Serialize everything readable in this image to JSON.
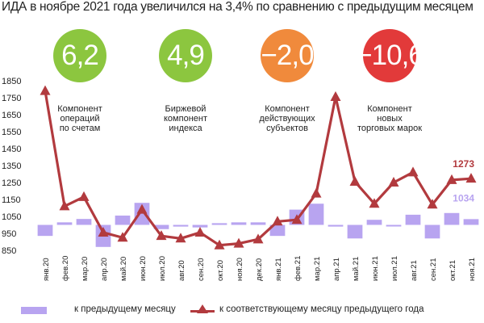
{
  "title": "ИДА в ноябре 2021 года увеличился на 3,4% по сравнению с предыдущим месяцем",
  "indicators": [
    {
      "value": "6,2",
      "label_lines": [
        "Компонент",
        "операций",
        "по счетам"
      ],
      "color": "#8cc63f"
    },
    {
      "value": "4,9",
      "label_lines": [
        "Биржевой",
        "компонент",
        "индекса"
      ],
      "color": "#8cc63f"
    },
    {
      "value": "−2,0",
      "label_lines": [
        "Компонент",
        "действующих",
        "субъектов"
      ],
      "color": "#f08a3c"
    },
    {
      "value": "−10,6",
      "label_lines": [
        "Компонент",
        "новых",
        "торговых марок"
      ],
      "color": "#e23a3a"
    }
  ],
  "legend": {
    "bar_label": "к предыдущему месяцу",
    "line_label": "к соответствующему месяцу предыдущего года"
  },
  "colors": {
    "bar": "#b8a4f0",
    "line": "#b23a3e"
  },
  "chart_data": {
    "type": "bar+line",
    "categories": [
      "янв.20",
      "фев.20",
      "мар.20",
      "апр.20",
      "май.20",
      "июн.20",
      "июл.20",
      "авг.20",
      "сен.20",
      "окт.20",
      "ноя.20",
      "дек.20",
      "янв.21",
      "фев.21",
      "мар.21",
      "апр.21",
      "май.21",
      "июн.21",
      "июл.21",
      "авг.21",
      "сен.21",
      "окт.21",
      "ноя.21"
    ],
    "ylim": [
      850,
      1850
    ],
    "yticks": [
      850,
      950,
      1050,
      1150,
      1250,
      1350,
      1450,
      1550,
      1650,
      1750,
      1850
    ],
    "baseline": 1000,
    "series": [
      {
        "name": "к предыдущему месяцу",
        "type": "bar",
        "values": [
          935,
          1015,
          1035,
          870,
          1055,
          1130,
          975,
          990,
          985,
          1010,
          1015,
          1015,
          935,
          1090,
          1125,
          990,
          920,
          1030,
          995,
          1060,
          920,
          1070,
          1034
        ]
      },
      {
        "name": "к соответствующему месяцу предыдущего года",
        "type": "line",
        "values": [
          1790,
          1110,
          1165,
          955,
          925,
          1090,
          935,
          920,
          955,
          880,
          890,
          915,
          1020,
          1030,
          1185,
          1755,
          1255,
          1125,
          1250,
          1310,
          1120,
          1265,
          1273
        ]
      }
    ],
    "data_labels": [
      {
        "series": 1,
        "index": 22,
        "text": "1273"
      },
      {
        "series": 0,
        "index": 22,
        "text": "1034"
      }
    ]
  }
}
